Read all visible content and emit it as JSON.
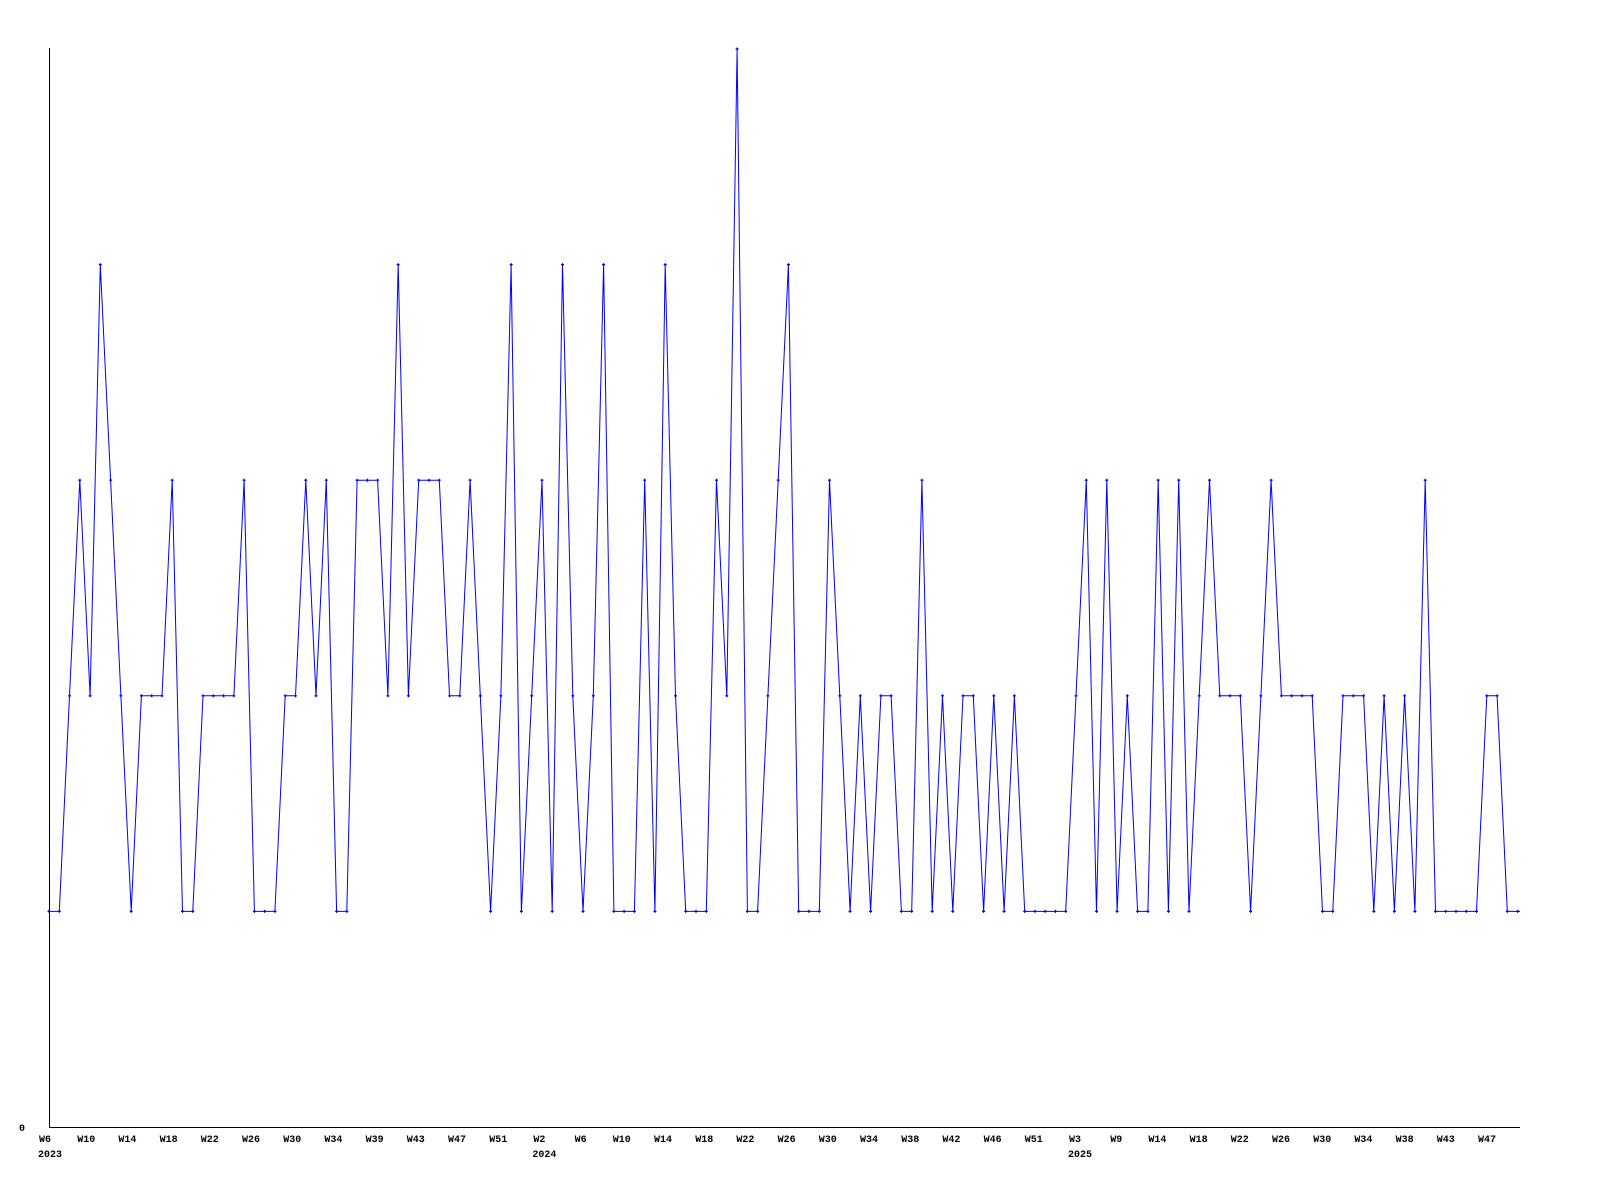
{
  "chart_data": {
    "type": "line",
    "title": "",
    "xlabel": "",
    "ylabel": "",
    "ylim": [
      0,
      5
    ],
    "y_tick_labels": [
      "0"
    ],
    "grid": false,
    "legend": "none",
    "line_color": "#0000ff",
    "axis_color": "#000000",
    "x_tick_labels": [
      "W6",
      "W10",
      "W14",
      "W18",
      "W22",
      "W26",
      "W30",
      "W34",
      "W39",
      "W43",
      "W47",
      "W51",
      "W2",
      "W6",
      "W10",
      "W14",
      "W18",
      "W22",
      "W26",
      "W30",
      "W34",
      "W38",
      "W42",
      "W46",
      "W51",
      "W3",
      "W9",
      "W14",
      "W18",
      "W22",
      "W26",
      "W30",
      "W34",
      "W38",
      "W43",
      "W47"
    ],
    "year_labels": [
      {
        "label": "2023",
        "tick_index": 0
      },
      {
        "label": "2024",
        "tick_index": 12
      },
      {
        "label": "2025",
        "tick_index": 25
      }
    ],
    "values": [
      1,
      1,
      2,
      3,
      2,
      4,
      3,
      2,
      1,
      2,
      2,
      2,
      3,
      1,
      1,
      2,
      2,
      2,
      2,
      3,
      1,
      1,
      1,
      2,
      2,
      3,
      2,
      3,
      1,
      1,
      3,
      3,
      3,
      2,
      4,
      2,
      3,
      3,
      3,
      2,
      2,
      3,
      2,
      1,
      2,
      4,
      1,
      2,
      3,
      1,
      4,
      2,
      1,
      2,
      4,
      1,
      1,
      1,
      3,
      1,
      4,
      2,
      1,
      1,
      1,
      3,
      2,
      5,
      1,
      1,
      2,
      3,
      4,
      1,
      1,
      1,
      3,
      2,
      1,
      2,
      1,
      2,
      2,
      1,
      1,
      3,
      1,
      2,
      1,
      2,
      2,
      1,
      2,
      1,
      2,
      1,
      1,
      1,
      1,
      1,
      2,
      3,
      1,
      3,
      1,
      2,
      1,
      1,
      3,
      1,
      3,
      1,
      2,
      3,
      2,
      2,
      2,
      1,
      2,
      3,
      2,
      2,
      2,
      2,
      1,
      1,
      2,
      2,
      2,
      1,
      2,
      1,
      2,
      1,
      3,
      1,
      1,
      1,
      1,
      1,
      2,
      2,
      1,
      1
    ]
  }
}
